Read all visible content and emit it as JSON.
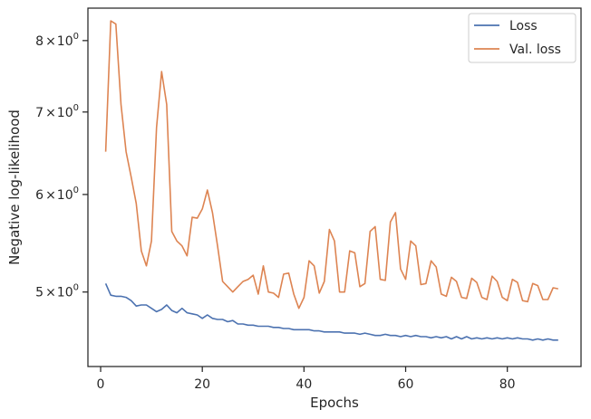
{
  "chart_data": {
    "type": "line",
    "title": "",
    "xlabel": "Epochs",
    "ylabel": "Negative log-likelihood",
    "yscale": "log",
    "xlim": [
      -2.5,
      94.5
    ],
    "ylim": [
      4.35,
      8.5
    ],
    "grid": false,
    "legend_position": "top-right",
    "x_ticks": [
      {
        "value": 0,
        "label": "0"
      },
      {
        "value": 20,
        "label": "20"
      },
      {
        "value": 40,
        "label": "40"
      },
      {
        "value": 60,
        "label": "60"
      },
      {
        "value": 80,
        "label": "80"
      }
    ],
    "y_ticks": [
      {
        "value": 5,
        "base": "5",
        "exp": "0"
      },
      {
        "value": 6,
        "base": "6",
        "exp": "0"
      },
      {
        "value": 7,
        "base": "7",
        "exp": "0"
      },
      {
        "value": 8,
        "base": "8",
        "exp": "0"
      }
    ],
    "x": [
      1,
      2,
      3,
      4,
      5,
      6,
      7,
      8,
      9,
      10,
      11,
      12,
      13,
      14,
      15,
      16,
      17,
      18,
      19,
      20,
      21,
      22,
      23,
      24,
      25,
      26,
      27,
      28,
      29,
      30,
      31,
      32,
      33,
      34,
      35,
      36,
      37,
      38,
      39,
      40,
      41,
      42,
      43,
      44,
      45,
      46,
      47,
      48,
      49,
      50,
      51,
      52,
      53,
      54,
      55,
      56,
      57,
      58,
      59,
      60,
      61,
      62,
      63,
      64,
      65,
      66,
      67,
      68,
      69,
      70,
      71,
      72,
      73,
      74,
      75,
      76,
      77,
      78,
      79,
      80,
      81,
      82,
      83,
      84,
      85,
      86,
      87,
      88,
      89,
      90
    ],
    "series": [
      {
        "name": "Loss",
        "color": "#4c72b0",
        "values": [
          5.08,
          4.97,
          4.96,
          4.96,
          4.95,
          4.92,
          4.87,
          4.88,
          4.88,
          4.85,
          4.82,
          4.84,
          4.88,
          4.83,
          4.81,
          4.85,
          4.81,
          4.8,
          4.79,
          4.76,
          4.79,
          4.76,
          4.75,
          4.75,
          4.73,
          4.74,
          4.71,
          4.71,
          4.7,
          4.7,
          4.69,
          4.69,
          4.69,
          4.68,
          4.68,
          4.67,
          4.67,
          4.66,
          4.66,
          4.66,
          4.66,
          4.65,
          4.65,
          4.64,
          4.64,
          4.64,
          4.64,
          4.63,
          4.63,
          4.63,
          4.62,
          4.63,
          4.62,
          4.61,
          4.61,
          4.62,
          4.61,
          4.61,
          4.6,
          4.61,
          4.6,
          4.61,
          4.6,
          4.6,
          4.59,
          4.6,
          4.59,
          4.6,
          4.58,
          4.6,
          4.58,
          4.6,
          4.58,
          4.59,
          4.58,
          4.59,
          4.58,
          4.59,
          4.58,
          4.59,
          4.58,
          4.59,
          4.58,
          4.58,
          4.57,
          4.58,
          4.57,
          4.58,
          4.57,
          4.57
        ]
      },
      {
        "name": "Val. loss",
        "color": "#dd8452",
        "values": [
          6.5,
          8.3,
          8.25,
          7.1,
          6.5,
          6.2,
          5.9,
          5.4,
          5.25,
          5.5,
          6.8,
          7.55,
          7.1,
          5.6,
          5.5,
          5.45,
          5.35,
          5.75,
          5.74,
          5.84,
          6.05,
          5.8,
          5.45,
          5.1,
          5.05,
          5.0,
          5.05,
          5.1,
          5.12,
          5.16,
          4.98,
          5.25,
          5.0,
          4.99,
          4.95,
          5.17,
          5.18,
          4.98,
          4.85,
          4.95,
          5.3,
          5.25,
          4.99,
          5.1,
          5.62,
          5.5,
          5.0,
          5.0,
          5.4,
          5.38,
          5.05,
          5.08,
          5.6,
          5.65,
          5.12,
          5.11,
          5.7,
          5.8,
          5.22,
          5.12,
          5.5,
          5.45,
          5.07,
          5.08,
          5.3,
          5.24,
          4.98,
          4.96,
          5.14,
          5.1,
          4.95,
          4.94,
          5.13,
          5.09,
          4.95,
          4.93,
          5.15,
          5.1,
          4.95,
          4.92,
          5.12,
          5.09,
          4.92,
          4.91,
          5.08,
          5.06,
          4.93,
          4.93,
          5.04,
          5.03
        ]
      }
    ]
  }
}
